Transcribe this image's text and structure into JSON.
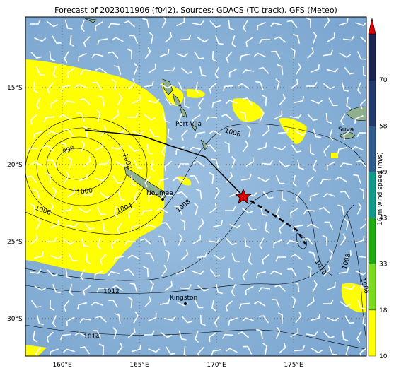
{
  "title": "Forecast of 2023011906 (f042), Sources: GDACS (TC track), GFS (Meteo)",
  "lat_labels": [
    "15°S",
    "20°S",
    "25°S",
    "30°S"
  ],
  "lon_labels": [
    "160°E",
    "165°E",
    "170°E",
    "175°E"
  ],
  "places": [
    {
      "name": "Port-Vila"
    },
    {
      "name": "Suva"
    },
    {
      "name": "Noumea"
    },
    {
      "name": "Kingston"
    }
  ],
  "isobar_labels": [
    "998",
    "1000",
    "1002",
    "1004",
    "1006",
    "1006",
    "1008",
    "1008",
    "1010",
    "1006",
    "1012",
    "1014"
  ],
  "colorbar": {
    "label": "10 m wind speed (m/s)",
    "ticks": [
      "10",
      "18",
      "33",
      "43",
      "49",
      "58",
      "70"
    ],
    "colors": [
      "#ffff00",
      "#7bdc1e",
      "#1fac10",
      "#0f9c8a",
      "#2e5d8e",
      "#233a6e",
      "#1c2450"
    ],
    "arrow_color": "#e00000"
  },
  "track": {
    "past_color": "#000000",
    "forecast_color": "#000000",
    "marker_color": "#e00000"
  },
  "colors": {
    "ocean": "#7ba6d0",
    "land": "#8fb08f",
    "high_wind": "#ffff00"
  }
}
